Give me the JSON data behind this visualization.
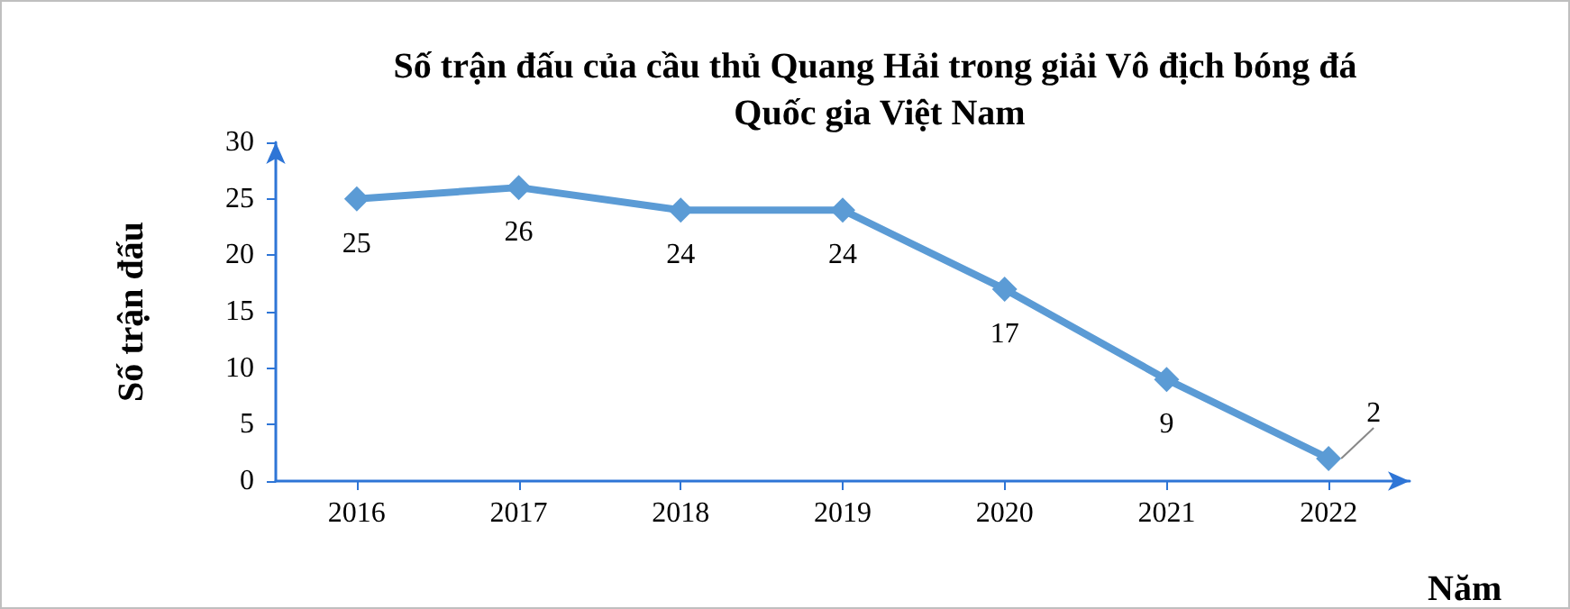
{
  "chart_data": {
    "type": "line",
    "title": "Số trận đấu của cầu thủ Quang Hải trong giải Vô địch bóng đá Quốc gia Việt Nam",
    "xlabel": "Năm",
    "ylabel": "Số trận đấu",
    "categories": [
      "2016",
      "2017",
      "2018",
      "2019",
      "2020",
      "2021",
      "2022"
    ],
    "series": [
      {
        "color": "#5b9bd5",
        "values": [
          25,
          26,
          24,
          24,
          17,
          9,
          2
        ]
      }
    ],
    "ylim": [
      0,
      30
    ],
    "yticks": [
      0,
      5,
      10,
      15,
      20,
      25,
      30
    ],
    "marker": "diamond",
    "line_style": "solid",
    "data_labels": true
  }
}
